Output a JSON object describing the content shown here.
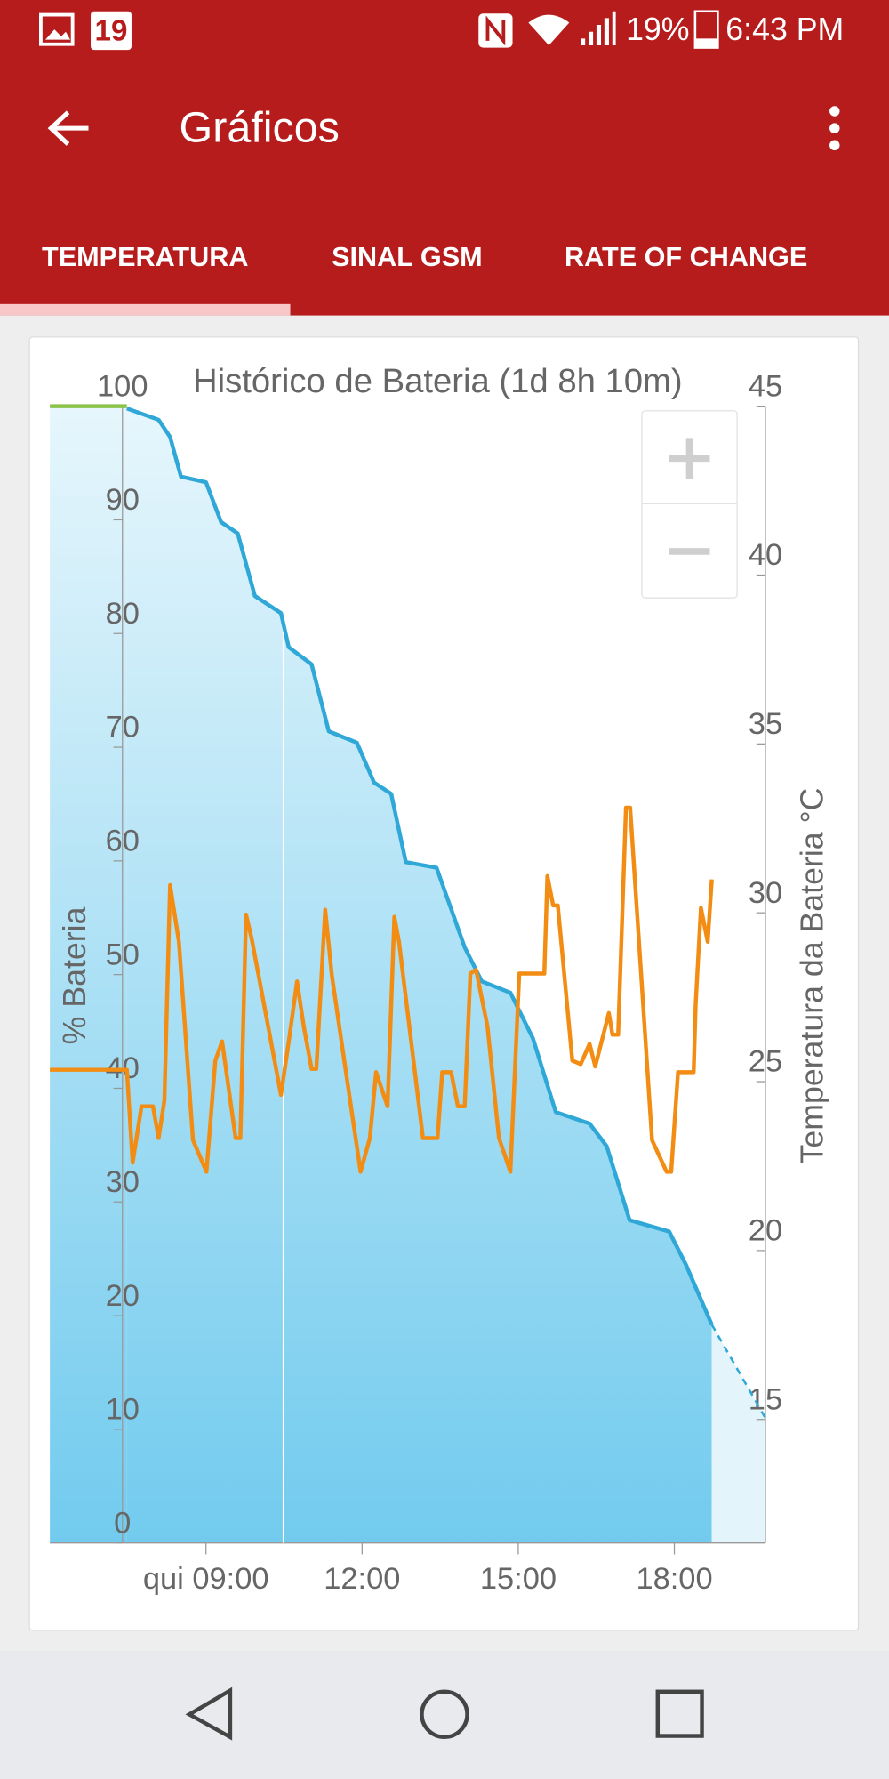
{
  "status_bar": {
    "notification": "19",
    "battery": "19%",
    "time": "6:43 PM"
  },
  "app_bar": {
    "title": "Gráficos"
  },
  "tabs": [
    "TEMPERATURA",
    "SINAL GSM",
    "RATE OF CHANGE"
  ],
  "chart_data": {
    "type": "line",
    "title": "Histórico de Bateria (1d 8h 10m)",
    "y_label": "% Bateria",
    "y2_label": "Temperatura da Bateria °C",
    "xlim": [
      6,
      19.75
    ],
    "xticks": [
      {
        "value": 9,
        "label": "qui 09:00"
      },
      {
        "value": 12,
        "label": "12:00"
      },
      {
        "value": 15,
        "label": "15:00"
      },
      {
        "value": 18,
        "label": "18:00"
      }
    ],
    "ylim": [
      0,
      100
    ],
    "yticks": [
      0,
      10,
      20,
      30,
      40,
      50,
      60,
      70,
      80,
      90,
      100
    ],
    "y2lim": [
      11.34,
      45
    ],
    "y2ticks": [
      15,
      20,
      25,
      30,
      35,
      40,
      45
    ],
    "series": [
      {
        "color": "#8bc34a",
        "x": [
          6.0,
          7.48
        ],
        "values": [
          100,
          100
        ]
      },
      {
        "color": "#2fa8d8",
        "x": [
          7.48,
          8.09,
          8.31,
          8.52,
          9.0,
          9.29,
          9.61,
          9.94,
          10.44,
          10.59,
          11.03,
          11.36,
          11.9,
          12.23,
          12.56,
          12.84,
          13.43,
          13.97,
          14.3,
          14.85,
          15.28,
          15.72,
          16.37,
          16.7,
          17.14,
          17.9,
          18.22,
          18.72
        ],
        "values": [
          99.8,
          98.8,
          97.3,
          93.8,
          93.3,
          89.8,
          88.8,
          83.3,
          81.8,
          78.8,
          77.3,
          71.4,
          70.4,
          66.9,
          65.9,
          59.9,
          59.4,
          52.4,
          49.4,
          48.4,
          44.4,
          37.9,
          36.9,
          34.9,
          28.4,
          27.4,
          24.5,
          19.2
        ]
      },
      {
        "color": "#2fa8d8",
        "dashed": true,
        "x": [
          18.72,
          19.75
        ],
        "values": [
          19.2,
          11.0
        ]
      },
      {
        "color": "#f28c12",
        "axis": "y2",
        "x": [
          6.0,
          7.48,
          7.59,
          7.76,
          7.98,
          8.09,
          8.2,
          8.31,
          8.48,
          8.75,
          9.01,
          9.18,
          9.31,
          9.57,
          9.66,
          9.77,
          9.88,
          10.44,
          10.6,
          10.75,
          10.88,
          11.03,
          11.12,
          11.29,
          11.42,
          11.69,
          11.97,
          12.15,
          12.27,
          12.49,
          12.62,
          12.71,
          13.17,
          13.45,
          13.54,
          13.71,
          13.84,
          13.97,
          14.08,
          14.19,
          14.41,
          14.63,
          14.85,
          15.02,
          15.5,
          15.56,
          15.67,
          15.76,
          16.04,
          16.2,
          16.37,
          16.48,
          16.59,
          16.74,
          16.81,
          16.92,
          17.07,
          17.15,
          17.57,
          17.85,
          17.94,
          18.07,
          18.37,
          18.41,
          18.51,
          18.64,
          18.72
        ],
        "values": [
          25.35,
          25.35,
          22.6,
          24.27,
          24.27,
          23.33,
          24.44,
          30.82,
          29.14,
          23.27,
          22.33,
          25.62,
          26.19,
          23.33,
          23.33,
          29.95,
          29.21,
          24.61,
          26.29,
          27.97,
          26.63,
          25.38,
          25.38,
          30.09,
          28.14,
          25.28,
          22.33,
          23.33,
          25.28,
          24.27,
          29.88,
          29.14,
          23.33,
          23.33,
          25.28,
          25.28,
          24.27,
          24.27,
          28.2,
          28.31,
          26.63,
          23.33,
          22.33,
          28.2,
          28.2,
          31.09,
          30.22,
          30.22,
          25.62,
          25.52,
          26.12,
          25.45,
          26.12,
          27.03,
          26.39,
          26.39,
          33.11,
          33.11,
          23.27,
          22.33,
          22.33,
          25.28,
          25.28,
          27.3,
          30.15,
          29.14,
          30.99
        ]
      }
    ]
  }
}
